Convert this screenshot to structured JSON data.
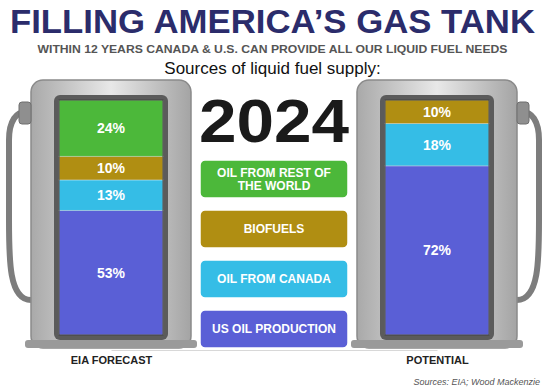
{
  "chart_data": {
    "type": "bar",
    "title": "FILLING AMERICA’S GAS TANK",
    "subtitle": "WITHIN 12 YEARS CANADA & U.S. CAN PROVIDE ALL OUR LIQUID FUEL NEEDS",
    "annotations": [
      "Sources of liquid fuel supply:",
      "2024",
      "Sources: EIA; Wood Mackenzie"
    ],
    "categories": [
      "EIA FORECAST",
      "POTENTIAL"
    ],
    "series": [
      {
        "name": "US OIL PRODUCTION",
        "color": "#5a5fd6",
        "values": [
          53,
          72
        ],
        "value_labels": [
          "53%",
          "72%"
        ]
      },
      {
        "name": "OIL FROM CANADA",
        "color": "#35bde6",
        "values": [
          13,
          18
        ],
        "value_labels": [
          "13%",
          "18%"
        ]
      },
      {
        "name": "BIOFUELS",
        "color": "#b08e12",
        "values": [
          10,
          10
        ],
        "value_labels": [
          "10%",
          "10%"
        ]
      },
      {
        "name": "OIL FROM REST OF THE WORLD",
        "color": "#4cb83a",
        "values": [
          24,
          null
        ],
        "value_labels": [
          "24%",
          null
        ]
      }
    ],
    "stacked": true,
    "data_labels": true,
    "legend": "center",
    "ylim": [
      0,
      100
    ],
    "tick_labels": "x"
  }
}
